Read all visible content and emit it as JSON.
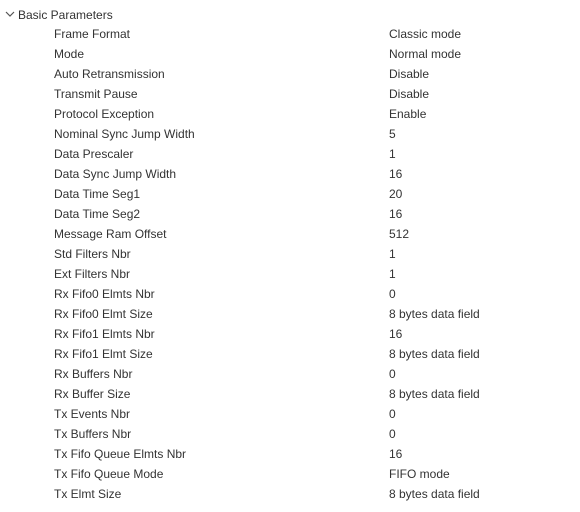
{
  "section": {
    "title": "Basic Parameters",
    "expanded": true
  },
  "params": [
    {
      "label": "Frame Format",
      "value": "Classic mode"
    },
    {
      "label": "Mode",
      "value": "Normal mode"
    },
    {
      "label": "Auto Retransmission",
      "value": "Disable"
    },
    {
      "label": "Transmit Pause",
      "value": "Disable"
    },
    {
      "label": "Protocol Exception",
      "value": "Enable"
    },
    {
      "label": "Nominal Sync Jump Width",
      "value": "5"
    },
    {
      "label": "Data Prescaler",
      "value": "1"
    },
    {
      "label": "Data Sync Jump Width",
      "value": "16"
    },
    {
      "label": "Data Time Seg1",
      "value": "20"
    },
    {
      "label": "Data Time Seg2",
      "value": "16"
    },
    {
      "label": "Message Ram Offset",
      "value": "512"
    },
    {
      "label": "Std Filters Nbr",
      "value": "1"
    },
    {
      "label": "Ext Filters Nbr",
      "value": "1"
    },
    {
      "label": "Rx Fifo0 Elmts Nbr",
      "value": "0"
    },
    {
      "label": "Rx Fifo0 Elmt Size",
      "value": "8 bytes data field"
    },
    {
      "label": "Rx Fifo1 Elmts Nbr",
      "value": "16"
    },
    {
      "label": "Rx Fifo1 Elmt Size",
      "value": "8 bytes data field"
    },
    {
      "label": "Rx Buffers Nbr",
      "value": "0"
    },
    {
      "label": "Rx Buffer Size",
      "value": "8 bytes data field"
    },
    {
      "label": "Tx Events Nbr",
      "value": "0"
    },
    {
      "label": "Tx Buffers Nbr",
      "value": "0"
    },
    {
      "label": "Tx Fifo Queue Elmts Nbr",
      "value": "16"
    },
    {
      "label": "Tx Fifo Queue Mode",
      "value": "FIFO mode"
    },
    {
      "label": "Tx Elmt Size",
      "value": "8 bytes data field"
    }
  ]
}
